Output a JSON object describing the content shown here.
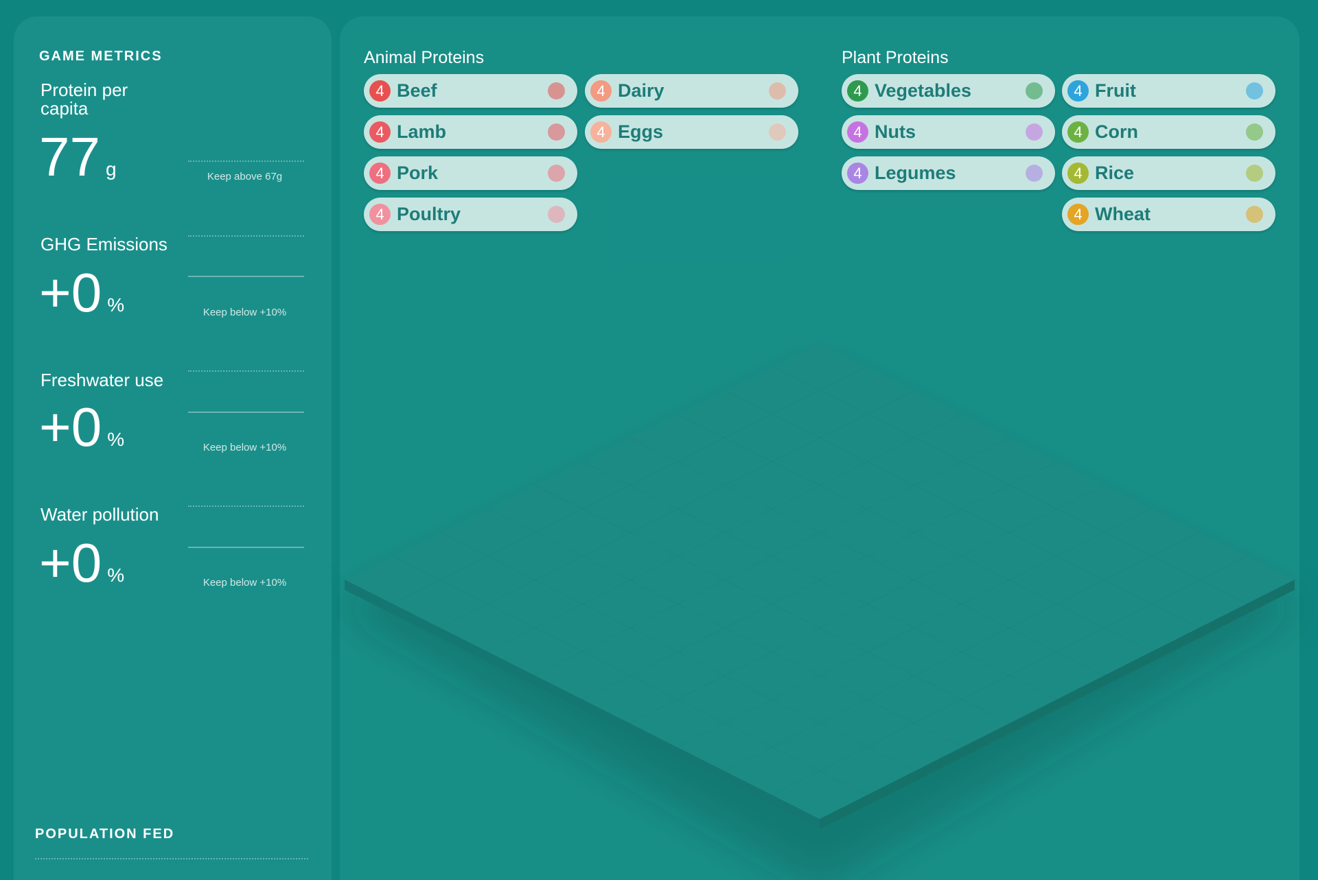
{
  "metrics": {
    "title": "GAME METRICS",
    "items": [
      {
        "label": "Protein per capita",
        "value": "77",
        "unit": "g",
        "target": "Keep above 67g"
      },
      {
        "label": "GHG Emissions",
        "value": "+0",
        "unit": "%",
        "target": "Keep below +10%"
      },
      {
        "label": "Freshwater use",
        "value": "+0",
        "unit": "%",
        "target": "Keep below +10%"
      },
      {
        "label": "Water pollution",
        "value": "+0",
        "unit": "%",
        "target": "Keep below +10%"
      }
    ]
  },
  "footer": {
    "title": "POPULATION FED"
  },
  "groups": [
    {
      "title": "Animal Proteins",
      "columns": [
        [
          {
            "name": "Beef",
            "count": 4,
            "color": "#e8504f"
          },
          {
            "name": "Lamb",
            "count": 4,
            "color": "#ea5a62"
          },
          {
            "name": "Pork",
            "count": 4,
            "color": "#ee6f80"
          },
          {
            "name": "Poultry",
            "count": 4,
            "color": "#f091a0"
          }
        ],
        [
          {
            "name": "Dairy",
            "count": 4,
            "color": "#f29a82"
          },
          {
            "name": "Eggs",
            "count": 4,
            "color": "#f6b29a"
          }
        ]
      ]
    },
    {
      "title": "Plant Proteins",
      "columns": [
        [
          {
            "name": "Vegetables",
            "count": 4,
            "color": "#2e9a4e"
          },
          {
            "name": "Nuts",
            "count": 4,
            "color": "#c673e2"
          },
          {
            "name": "Legumes",
            "count": 4,
            "color": "#a985e4"
          }
        ],
        [
          {
            "name": "Fruit",
            "count": 4,
            "color": "#2ea4dc"
          },
          {
            "name": "Corn",
            "count": 4,
            "color": "#6cb242"
          },
          {
            "name": "Rice",
            "count": 4,
            "color": "#a4b832"
          },
          {
            "name": "Wheat",
            "count": 4,
            "color": "#e4a424"
          }
        ]
      ]
    }
  ]
}
